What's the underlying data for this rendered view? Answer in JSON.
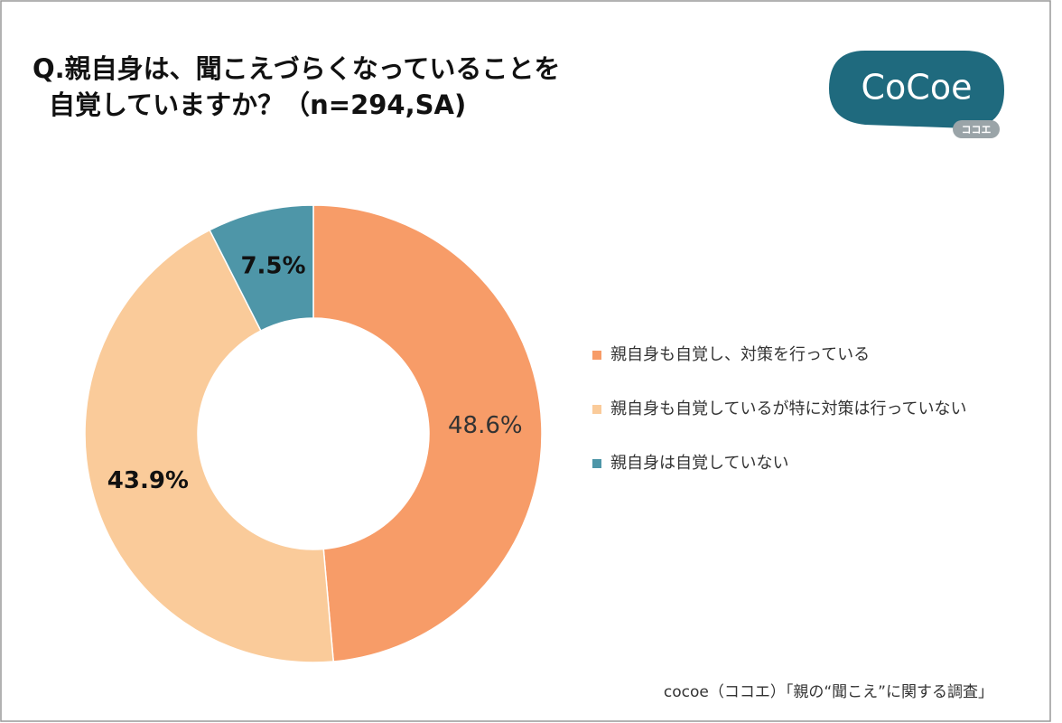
{
  "chart_data": {
    "type": "donut",
    "title": [
      "Q.親自身は、聞こえづらくなっていることを",
      "自覚していますか？（n=294,SA)"
    ],
    "categories": [
      "親自身も自覚し、対策を行っている",
      "親自身も自覚しているが特に対策は行っていない",
      "親自身は自覚していない"
    ],
    "values": [
      48.6,
      43.9,
      7.5
    ],
    "value_labels": [
      "48.6%",
      "43.9%",
      "7.5%"
    ],
    "colors": [
      "#f79c68",
      "#facb9a",
      "#4e96a8"
    ],
    "legend": "right"
  },
  "logo": {
    "name": "CoCoe",
    "reading": "ココエ"
  },
  "source": "cocoe（ココエ）「親の“聞こえ”に関する調査」"
}
